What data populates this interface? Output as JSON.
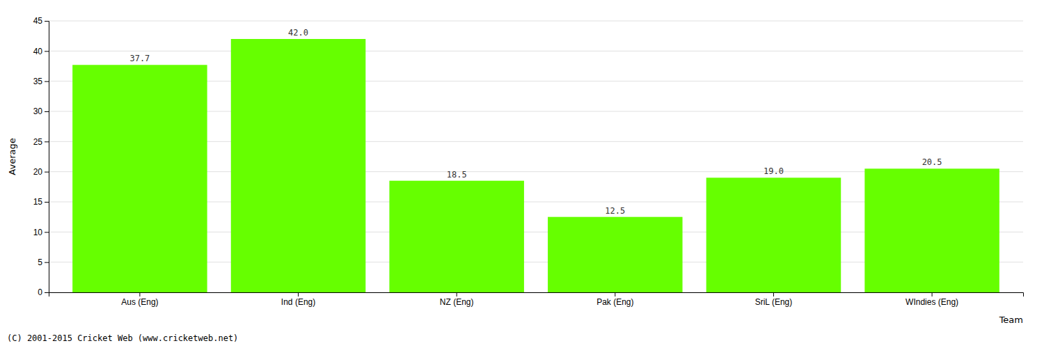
{
  "chart_data": {
    "type": "bar",
    "categories": [
      "Aus (Eng)",
      "Ind (Eng)",
      "NZ (Eng)",
      "Pak (Eng)",
      "SriL (Eng)",
      "WIndies (Eng)"
    ],
    "values": [
      37.7,
      42.0,
      18.5,
      12.5,
      19.0,
      20.5
    ],
    "value_labels": [
      "37.7",
      "42.0",
      "18.5",
      "12.5",
      "19.0",
      "20.5"
    ],
    "data_labels": true,
    "color": "#66ff00",
    "xlabel": "Team",
    "ylabel": "Average",
    "ylim": [
      0,
      45
    ],
    "yticks": [
      0,
      5,
      10,
      15,
      20,
      25,
      30,
      35,
      40,
      45
    ],
    "grid": true,
    "footer": "(C) 2001-2015 Cricket Web (www.cricketweb.net)"
  }
}
